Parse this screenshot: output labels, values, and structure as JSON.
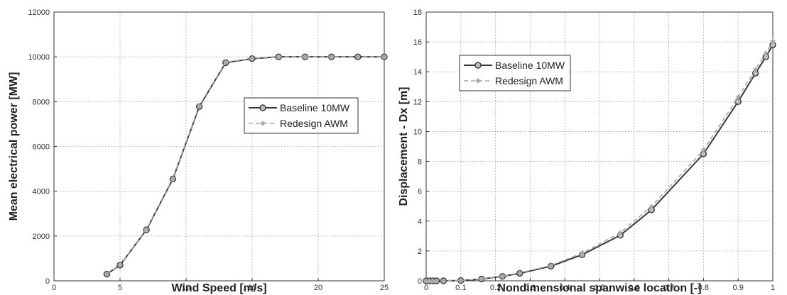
{
  "chart_data": [
    {
      "type": "line",
      "xlabel": "Wind Speed [m/s]",
      "ylabel": "Mean electrical power [MW]",
      "xlim": [
        0,
        25
      ],
      "ylim": [
        0,
        12000
      ],
      "xticks": [
        0,
        5,
        10,
        15,
        20,
        25
      ],
      "yticks": [
        0,
        2000,
        4000,
        6000,
        8000,
        10000,
        12000
      ],
      "grid": true,
      "legend_position": "center-right",
      "series": [
        {
          "name": "Baseline 10MW",
          "style": "solid-circle",
          "color": "#3a3a3a",
          "x": [
            4,
            5,
            7,
            9,
            11,
            13,
            15,
            17,
            19,
            21,
            23,
            25
          ],
          "y": [
            300,
            700,
            2280,
            4550,
            7780,
            9740,
            9920,
            10000,
            10000,
            10000,
            10000,
            10000
          ]
        },
        {
          "name": "Redesign AWM",
          "style": "dashed-star",
          "color": "#a8a8a8",
          "x": [
            4,
            5,
            7,
            9,
            11,
            13,
            15,
            17,
            19,
            21,
            23,
            25
          ],
          "y": [
            310,
            710,
            2300,
            4580,
            7820,
            9760,
            9930,
            10000,
            10000,
            10000,
            10000,
            10000
          ]
        }
      ]
    },
    {
      "type": "line",
      "xlabel": "Nondimensional spanwise location [-]",
      "ylabel": "Displacement - Dx [m]",
      "xlim": [
        0,
        1
      ],
      "ylim": [
        0,
        18
      ],
      "xticks": [
        "0",
        "0.1",
        "0.2",
        "0.3",
        "0.4",
        "0.5",
        "0.6",
        "0.7",
        "0.8",
        "0.9",
        "1"
      ],
      "yticks": [
        0,
        2,
        4,
        6,
        8,
        10,
        12,
        14,
        16,
        18
      ],
      "grid": true,
      "legend_position": "top-left",
      "series": [
        {
          "name": "Baseline 10MW",
          "style": "solid-circle",
          "color": "#3a3a3a",
          "x": [
            0,
            0.01,
            0.02,
            0.03,
            0.05,
            0.1,
            0.16,
            0.22,
            0.27,
            0.36,
            0.45,
            0.56,
            0.65,
            0.8,
            0.9,
            0.95,
            0.98,
            1.0
          ],
          "y": [
            0,
            0,
            0,
            0,
            0,
            0.02,
            0.12,
            0.3,
            0.5,
            0.98,
            1.75,
            3.05,
            4.75,
            8.5,
            12.0,
            13.9,
            15.0,
            15.8
          ]
        },
        {
          "name": "Redesign AWM",
          "style": "dashed-star",
          "color": "#a8a8a8",
          "x": [
            0,
            0.01,
            0.02,
            0.03,
            0.05,
            0.1,
            0.16,
            0.22,
            0.27,
            0.36,
            0.45,
            0.56,
            0.65,
            0.8,
            0.9,
            0.95,
            0.98,
            1.0
          ],
          "y": [
            0,
            0,
            0,
            0,
            0,
            0.02,
            0.13,
            0.32,
            0.53,
            1.03,
            1.85,
            3.22,
            4.98,
            8.75,
            12.3,
            14.15,
            15.25,
            16.05
          ]
        }
      ]
    }
  ]
}
